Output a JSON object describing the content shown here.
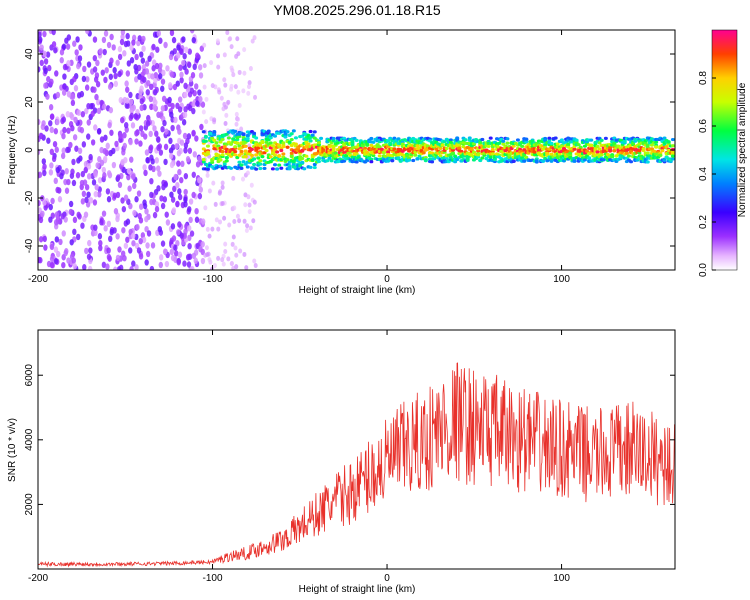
{
  "title": "YM08.2025.296.01.18.R15",
  "chart_data": [
    {
      "type": "heatmap",
      "name": "spectrogram",
      "xlabel": "Height of straight line (km)",
      "ylabel": "Frequency (Hz)",
      "xlim": [
        -200,
        165
      ],
      "ylim": [
        -50,
        50
      ],
      "xticks": [
        -200,
        -100,
        0,
        100
      ],
      "yticks": [
        -40,
        -20,
        0,
        20,
        40
      ],
      "colorbar": {
        "label": "Normalized spectral amplitude",
        "range": [
          0,
          1
        ],
        "ticks": [
          0.0,
          0.2,
          0.4,
          0.6,
          0.8
        ],
        "colormap": "rainbow"
      },
      "regions": [
        {
          "description": "noise",
          "x": [
            -200,
            -105
          ],
          "amplitude": 0.1
        },
        {
          "description": "sparse noise",
          "x": [
            -105,
            -75
          ],
          "amplitude": 0.05
        },
        {
          "description": "signal band",
          "x": [
            -105,
            165
          ],
          "center_hz": 0,
          "width_hz": 10,
          "peak_amplitude": 0.95
        }
      ]
    },
    {
      "type": "line",
      "name": "snr",
      "xlabel": "Height of straight line (km)",
      "ylabel": "SNR (10 * v/v)",
      "xlim": [
        -200,
        165
      ],
      "ylim": [
        0,
        7400
      ],
      "xticks": [
        -200,
        -100,
        0,
        100
      ],
      "yticks": [
        2000,
        4000,
        6000
      ],
      "color": "#e8302a",
      "series": [
        {
          "name": "SNR",
          "x": [
            -200,
            -180,
            -160,
            -140,
            -120,
            -100,
            -90,
            -80,
            -70,
            -60,
            -50,
            -40,
            -30,
            -20,
            -10,
            0,
            10,
            20,
            30,
            40,
            50,
            60,
            70,
            80,
            90,
            100,
            110,
            120,
            130,
            140,
            150,
            160,
            165
          ],
          "values": [
            150,
            150,
            150,
            160,
            180,
            220,
            400,
            500,
            700,
            900,
            1300,
            1700,
            2100,
            2400,
            2900,
            3300,
            3700,
            3900,
            4300,
            4600,
            4400,
            4300,
            4100,
            4000,
            3800,
            3700,
            3600,
            3500,
            3600,
            3700,
            3500,
            3300,
            3200
          ]
        }
      ]
    }
  ]
}
